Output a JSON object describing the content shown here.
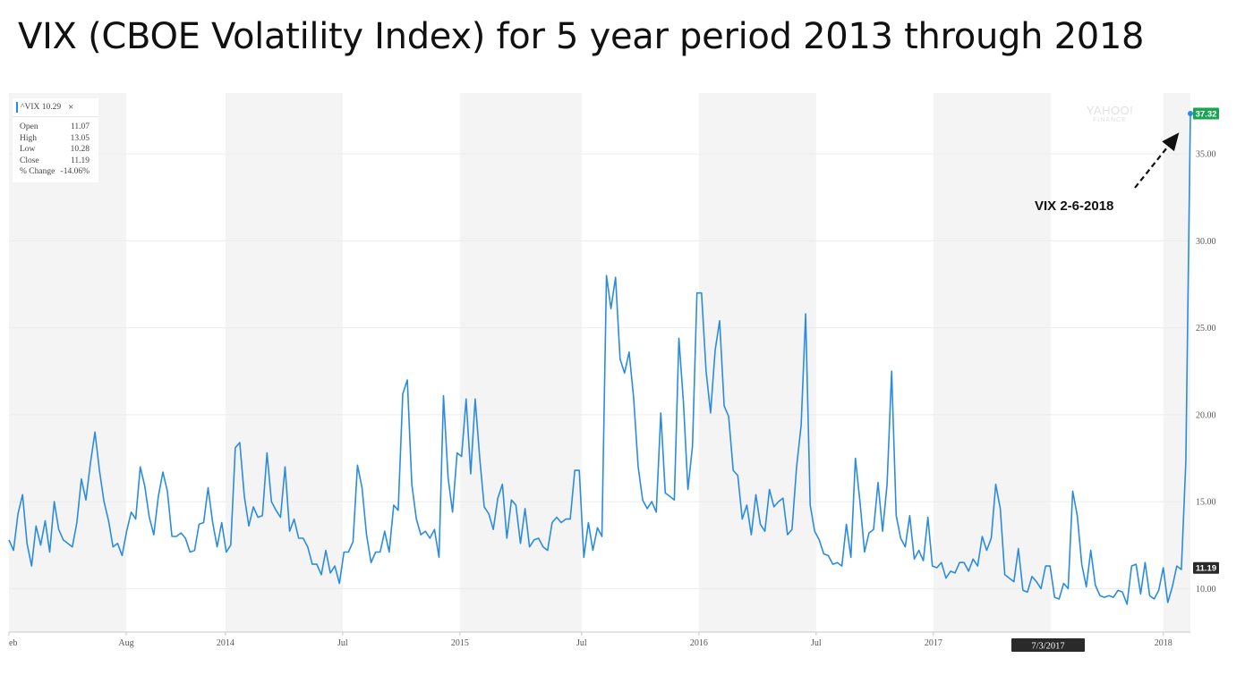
{
  "slide": {
    "title": "VIX (CBOE Volatility Index) for 5 year period 2013 through 2018"
  },
  "legend": {
    "label": "^VIX 10.29",
    "close_symbol": "×",
    "stats": [
      {
        "name": "Open",
        "value": "11.07"
      },
      {
        "name": "High",
        "value": "13.05"
      },
      {
        "name": "Low",
        "value": "10.28"
      },
      {
        "name": "Close",
        "value": "11.19"
      },
      {
        "name": "% Change",
        "value": "-14.06%"
      }
    ]
  },
  "watermark": {
    "main": "YAHOO!",
    "sub": "FINANCE"
  },
  "annotation": {
    "text": "VIX 2-6-2018"
  },
  "badges": {
    "last": {
      "text": "37.32",
      "color": "#1aa553"
    },
    "close": {
      "text": "11.19",
      "color": "#2a2a2a"
    },
    "hover_date": {
      "text": "7/3/2017",
      "color": "#2a2a2a"
    }
  },
  "chart_data": {
    "type": "line",
    "title": "VIX (CBOE Volatility Index) for 5 year period 2013 through 2018",
    "series_name": "^VIX",
    "line_color": "#2b8cdf",
    "x_unit": "weeks since first shown data point (start of Feb 2013)",
    "xlim": [
      0,
      262
    ],
    "ylim": [
      7.5,
      38.5
    ],
    "y_ticks": [
      {
        "value": 10,
        "label": "10.00"
      },
      {
        "value": 15,
        "label": "15.00"
      },
      {
        "value": 20,
        "label": "20.00"
      },
      {
        "value": 25,
        "label": "25.00"
      },
      {
        "value": 30,
        "label": "30.00"
      },
      {
        "value": 35,
        "label": "35.00"
      }
    ],
    "x_ticks": [
      {
        "x": 0,
        "label": "eb"
      },
      {
        "x": 26,
        "label": "Aug"
      },
      {
        "x": 48,
        "label": "2014"
      },
      {
        "x": 74,
        "label": "Jul"
      },
      {
        "x": 100,
        "label": "2015"
      },
      {
        "x": 127,
        "label": "Jul"
      },
      {
        "x": 153,
        "label": "2016"
      },
      {
        "x": 179,
        "label": "Jul"
      },
      {
        "x": 205,
        "label": "2017"
      },
      {
        "x": 256,
        "label": "2018"
      }
    ],
    "shaded_bands": [
      [
        0,
        26
      ],
      [
        48,
        74
      ],
      [
        100,
        127
      ],
      [
        153,
        179
      ],
      [
        205,
        231
      ],
      [
        256,
        262
      ]
    ],
    "grid": true,
    "values": [
      12.8,
      12.2,
      14.3,
      15.4,
      12.6,
      11.3,
      13.6,
      12.5,
      13.9,
      12.1,
      15.0,
      13.4,
      12.8,
      12.6,
      12.4,
      13.8,
      16.3,
      15.1,
      17.2,
      19.0,
      16.8,
      15.0,
      13.9,
      12.4,
      12.6,
      11.9,
      13.3,
      14.4,
      14.0,
      17.0,
      15.9,
      14.1,
      13.1,
      15.3,
      16.7,
      15.6,
      13.0,
      13.0,
      13.2,
      12.9,
      12.1,
      12.2,
      13.7,
      13.8,
      15.8,
      13.8,
      12.4,
      13.8,
      12.1,
      12.5,
      18.1,
      18.4,
      15.3,
      13.6,
      14.7,
      14.1,
      14.2,
      17.8,
      15.0,
      14.5,
      14.1,
      17.0,
      13.3,
      14.0,
      12.9,
      12.9,
      12.4,
      11.4,
      11.4,
      10.8,
      12.2,
      10.9,
      11.3,
      10.3,
      12.1,
      12.1,
      12.7,
      17.1,
      15.8,
      13.1,
      11.5,
      12.1,
      12.1,
      13.3,
      12.1,
      14.8,
      14.5,
      21.2,
      22.0,
      16.0,
      14.0,
      13.1,
      13.3,
      12.9,
      13.4,
      11.8,
      21.1,
      16.4,
      14.4,
      17.8,
      17.6,
      20.9,
      16.6,
      20.9,
      17.5,
      14.7,
      14.3,
      13.4,
      15.2,
      16.0,
      12.9,
      15.1,
      14.8,
      12.6,
      14.6,
      12.4,
      12.8,
      12.9,
      12.4,
      12.2,
      13.8,
      14.1,
      13.8,
      14.0,
      14.0,
      16.8,
      16.8,
      11.8,
      13.8,
      12.2,
      13.5,
      13.0,
      28.0,
      26.1,
      27.9,
      23.2,
      22.4,
      23.6,
      21.0,
      17.0,
      15.1,
      14.6,
      15.0,
      14.4,
      20.1,
      15.5,
      15.3,
      15.1,
      24.4,
      20.7,
      15.7,
      18.2,
      27.0,
      27.0,
      22.5,
      20.1,
      23.7,
      25.4,
      20.5,
      19.9,
      16.8,
      16.5,
      14.0,
      14.8,
      13.1,
      15.4,
      13.7,
      13.3,
      15.7,
      14.7,
      15.0,
      15.2,
      13.1,
      13.4,
      17.0,
      19.4,
      25.8,
      14.8,
      13.3,
      12.8,
      12.0,
      11.9,
      11.4,
      11.5,
      11.3,
      13.7,
      11.8,
      17.5,
      15.0,
      12.1,
      13.2,
      13.4,
      16.1,
      13.3,
      16.0,
      22.5,
      14.2,
      12.9,
      12.4,
      14.2,
      11.7,
      12.2,
      11.6,
      14.1,
      11.3,
      11.2,
      11.5,
      10.6,
      11.0,
      10.9,
      11.5,
      11.5,
      11.0,
      11.7,
      11.3,
      13.0,
      12.2,
      12.9,
      16.0,
      14.6,
      10.8,
      10.6,
      10.4,
      12.3,
      9.9,
      9.8,
      10.7,
      10.4,
      10.0,
      11.3,
      11.3,
      9.5,
      9.4,
      10.3,
      10.0,
      15.6,
      14.2,
      11.4,
      10.1,
      12.2,
      10.2,
      9.6,
      9.5,
      9.6,
      9.5,
      9.9,
      9.8,
      9.1,
      11.3,
      11.4,
      9.7,
      11.5,
      9.6,
      9.4,
      9.9,
      11.2,
      9.2,
      10.1,
      11.3,
      11.1,
      17.3,
      37.32
    ]
  }
}
